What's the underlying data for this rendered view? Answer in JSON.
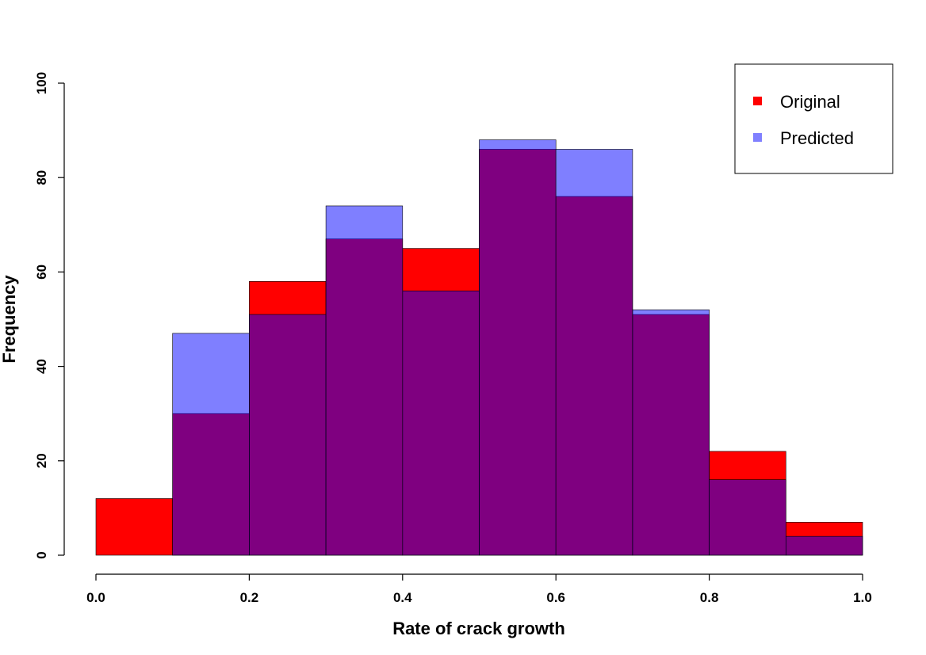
{
  "chart_data": {
    "type": "histogram",
    "title": "",
    "xlabel": "Rate of crack growth",
    "ylabel": "Frequency",
    "xlim": [
      0.0,
      1.0
    ],
    "ylim": [
      0,
      100
    ],
    "x_ticks": [
      "0.0",
      "0.2",
      "0.4",
      "0.6",
      "0.8",
      "1.0"
    ],
    "y_ticks": [
      "0",
      "20",
      "40",
      "60",
      "80",
      "100"
    ],
    "bin_edges": [
      0.0,
      0.1,
      0.2,
      0.3,
      0.4,
      0.5,
      0.6,
      0.7,
      0.8,
      0.9,
      1.0
    ],
    "series": [
      {
        "name": "Original",
        "color": "#ff0000",
        "opacity": 1.0,
        "values": [
          12,
          30,
          58,
          67,
          65,
          86,
          76,
          51,
          22,
          7
        ]
      },
      {
        "name": "Predicted",
        "color": "#0000ff",
        "opacity": 0.5,
        "values": [
          0,
          47,
          51,
          74,
          56,
          88,
          86,
          52,
          16,
          4
        ]
      }
    ],
    "legend": {
      "position": "top-right",
      "entries": [
        {
          "label": "Original",
          "color": "#ff0000"
        },
        {
          "label": "Predicted",
          "color": "#8080ff"
        }
      ]
    },
    "grid": false
  }
}
